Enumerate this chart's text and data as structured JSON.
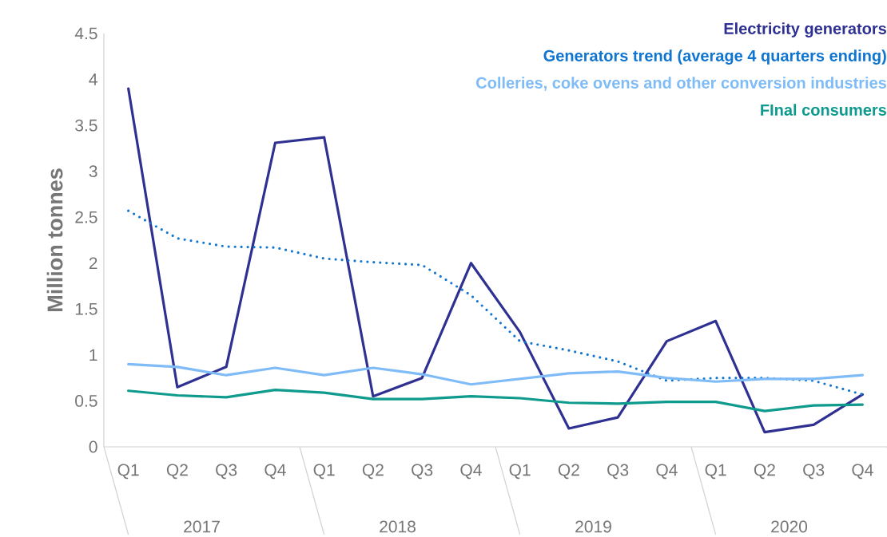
{
  "chart_data": {
    "type": "line",
    "ylabel": "Million tonnes",
    "categories": [
      "Q1",
      "Q2",
      "Q3",
      "Q4",
      "Q1",
      "Q2",
      "Q3",
      "Q4",
      "Q1",
      "Q2",
      "Q3",
      "Q4",
      "Q1",
      "Q2",
      "Q3",
      "Q4"
    ],
    "annotations": [
      "2017",
      "2018",
      "2019",
      "2020"
    ],
    "ylim": [
      0,
      4.5
    ],
    "yticks": [
      0,
      0.5,
      1,
      1.5,
      2,
      2.5,
      3,
      3.5,
      4,
      4.5
    ],
    "legend": "top right",
    "grid": false,
    "marker": "none",
    "series": [
      {
        "name": "Electricity generators",
        "color": "#2e3192",
        "line_style": "solid",
        "values": [
          3.9,
          0.65,
          0.87,
          3.31,
          3.37,
          0.55,
          0.75,
          2.0,
          1.25,
          0.2,
          0.32,
          1.15,
          1.37,
          0.16,
          0.24,
          0.57
        ]
      },
      {
        "name": "Generators trend (average 4 quarters ending)",
        "color": "#0f75d0",
        "line_style": "dotted",
        "values": [
          2.57,
          2.27,
          2.18,
          2.17,
          2.05,
          2.01,
          1.98,
          1.65,
          1.15,
          1.05,
          0.93,
          0.72,
          0.75,
          0.75,
          0.72,
          0.57
        ]
      },
      {
        "name": "Colleries, coke ovens and other conversion industries",
        "color": "#7fbcf7",
        "line_style": "solid",
        "values": [
          0.9,
          0.87,
          0.78,
          0.86,
          0.78,
          0.86,
          0.79,
          0.68,
          0.74,
          0.8,
          0.82,
          0.75,
          0.71,
          0.74,
          0.74,
          0.78
        ]
      },
      {
        "name": "FInal consumers",
        "color": "#0e9a8c",
        "line_style": "solid",
        "values": [
          0.61,
          0.56,
          0.54,
          0.62,
          0.59,
          0.52,
          0.52,
          0.55,
          0.53,
          0.48,
          0.47,
          0.49,
          0.49,
          0.39,
          0.45,
          0.46
        ]
      }
    ]
  }
}
